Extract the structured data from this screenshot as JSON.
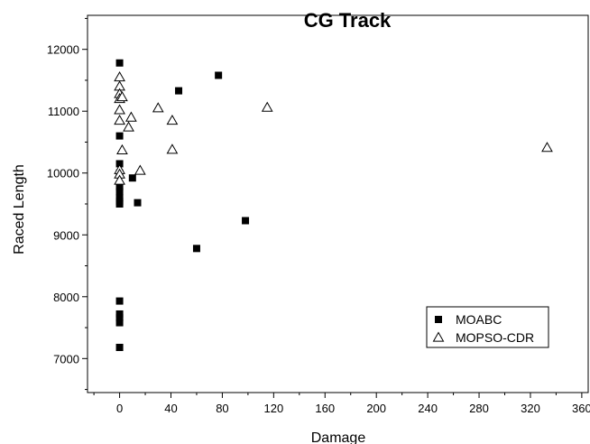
{
  "chart_data": {
    "type": "scatter",
    "title": "CG Track",
    "xlabel": "Damage",
    "ylabel": "Raced Length",
    "xlim": [
      -25,
      365
    ],
    "ylim": [
      6450,
      12550
    ],
    "xticks": [
      0,
      40,
      80,
      120,
      160,
      200,
      240,
      280,
      320,
      360
    ],
    "yticks": [
      7000,
      8000,
      9000,
      10000,
      11000,
      12000
    ],
    "grid": false,
    "legend_position": "bottom-right",
    "series": [
      {
        "name": "MOABC",
        "marker": "filled-square",
        "color": "#000000",
        "points": [
          [
            0,
            11780
          ],
          [
            0,
            10600
          ],
          [
            0,
            10150
          ],
          [
            0,
            10000
          ],
          [
            0,
            9780
          ],
          [
            0,
            9700
          ],
          [
            0,
            9600
          ],
          [
            0,
            9540
          ],
          [
            0,
            9500
          ],
          [
            0,
            7930
          ],
          [
            0,
            7720
          ],
          [
            0,
            7660
          ],
          [
            0,
            7580
          ],
          [
            0,
            7180
          ],
          [
            10,
            9920
          ],
          [
            14,
            9520
          ],
          [
            46,
            11330
          ],
          [
            60,
            8780
          ],
          [
            77,
            11580
          ],
          [
            98,
            9230
          ]
        ]
      },
      {
        "name": "MOPSO-CDR",
        "marker": "open-triangle",
        "color": "#000000",
        "points": [
          [
            0,
            11550
          ],
          [
            0,
            11400
          ],
          [
            0,
            11280
          ],
          [
            0,
            11200
          ],
          [
            0,
            11020
          ],
          [
            0,
            10850
          ],
          [
            2,
            10370
          ],
          [
            0,
            10050
          ],
          [
            0,
            9980
          ],
          [
            0,
            9880
          ],
          [
            2,
            11230
          ],
          [
            7,
            10740
          ],
          [
            9,
            10900
          ],
          [
            16,
            10040
          ],
          [
            30,
            11050
          ],
          [
            41,
            10850
          ],
          [
            41,
            10380
          ],
          [
            115,
            11060
          ],
          [
            333,
            10410
          ]
        ]
      }
    ]
  }
}
